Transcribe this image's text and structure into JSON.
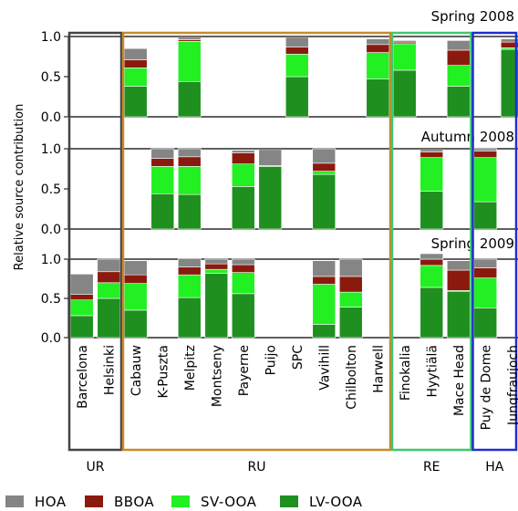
{
  "chart_data": {
    "type": "bar",
    "stacked": true,
    "ylabel": "Relative source contribution",
    "ylim": [
      0,
      1
    ],
    "yticks": [
      "0.0",
      "0.5",
      "1.0"
    ],
    "categories": [
      "Barcelona",
      "Helsinki",
      "Cabauw",
      "K-Puszta",
      "Melpitz",
      "Montseny",
      "Payerne",
      "Puijo",
      "SPC",
      "Vavihill",
      "Chilbolton",
      "Harwell",
      "Finokalia",
      "Hyytiälä",
      "Mace Head",
      "Puy de Dome",
      "Jungfraujoch"
    ],
    "groups": [
      {
        "label": "UR",
        "from": 0,
        "to": 1,
        "color": "#444444"
      },
      {
        "label": "RU",
        "from": 2,
        "to": 11,
        "color": "#c98a2c"
      },
      {
        "label": "RE",
        "from": 12,
        "to": 14,
        "color": "#3cc96e"
      },
      {
        "label": "HA",
        "from": 15,
        "to": 16,
        "color": "#1f2fd1"
      }
    ],
    "series_meta": [
      {
        "name": "LV-OOA",
        "color": "#1f8f1f"
      },
      {
        "name": "SV-OOA",
        "color": "#22f022"
      },
      {
        "name": "BBOA",
        "color": "#8b1a0e"
      },
      {
        "name": "HOA",
        "color": "#858585"
      }
    ],
    "panels": [
      {
        "title": "Spring 2008",
        "values": {
          "LV-OOA": [
            null,
            null,
            0.38,
            null,
            0.44,
            null,
            null,
            null,
            0.5,
            null,
            null,
            0.47,
            0.58,
            null,
            0.38,
            null,
            0.84
          ],
          "SV-OOA": [
            null,
            null,
            0.23,
            null,
            0.5,
            null,
            null,
            null,
            0.28,
            null,
            null,
            0.33,
            0.33,
            null,
            0.26,
            null,
            0.02
          ],
          "BBOA": [
            null,
            null,
            0.1,
            null,
            0.02,
            null,
            null,
            null,
            0.09,
            null,
            null,
            0.1,
            0.02,
            null,
            0.19,
            null,
            0.07
          ],
          "HOA": [
            null,
            null,
            0.14,
            null,
            0.03,
            null,
            null,
            null,
            0.12,
            null,
            null,
            0.07,
            0.02,
            null,
            0.12,
            null,
            0.04
          ]
        }
      },
      {
        "title": "Autumn 2008",
        "values": {
          "LV-OOA": [
            null,
            null,
            null,
            0.44,
            0.43,
            null,
            0.53,
            0.78,
            null,
            0.68,
            null,
            null,
            null,
            0.47,
            null,
            0.34,
            null
          ],
          "SV-OOA": [
            null,
            null,
            null,
            0.34,
            0.35,
            null,
            0.28,
            0.01,
            null,
            0.04,
            null,
            null,
            null,
            0.42,
            null,
            0.55,
            null
          ],
          "BBOA": [
            null,
            null,
            null,
            0.1,
            0.12,
            null,
            0.14,
            0.0,
            null,
            0.1,
            null,
            null,
            null,
            0.07,
            null,
            0.08,
            null
          ],
          "HOA": [
            null,
            null,
            null,
            0.12,
            0.1,
            null,
            0.03,
            0.2,
            null,
            0.18,
            null,
            null,
            null,
            0.03,
            null,
            0.03,
            null
          ]
        }
      },
      {
        "title": "Spring 2009",
        "values": {
          "LV-OOA": [
            0.28,
            0.5,
            0.35,
            null,
            0.51,
            0.82,
            0.56,
            null,
            null,
            0.17,
            0.39,
            null,
            null,
            0.64,
            0.59,
            0.38,
            null
          ],
          "SV-OOA": [
            0.2,
            0.2,
            0.34,
            null,
            0.29,
            0.05,
            0.27,
            null,
            null,
            0.51,
            0.19,
            null,
            null,
            0.28,
            0.01,
            0.38,
            null
          ],
          "BBOA": [
            0.07,
            0.14,
            0.11,
            null,
            0.1,
            0.07,
            0.1,
            null,
            null,
            0.1,
            0.2,
            null,
            null,
            0.08,
            0.26,
            0.13,
            null
          ],
          "HOA": [
            0.26,
            0.16,
            0.18,
            null,
            0.11,
            0.06,
            0.07,
            null,
            null,
            0.2,
            0.22,
            null,
            null,
            0.07,
            0.12,
            0.11,
            null
          ]
        }
      }
    ],
    "legend": {
      "position": "bottom",
      "items": [
        {
          "name": "HOA",
          "color": "#858585"
        },
        {
          "name": "BBOA",
          "color": "#8b1a0e"
        },
        {
          "name": "SV-OOA",
          "color": "#22f022"
        },
        {
          "name": "LV-OOA",
          "color": "#1f8f1f"
        }
      ]
    }
  }
}
